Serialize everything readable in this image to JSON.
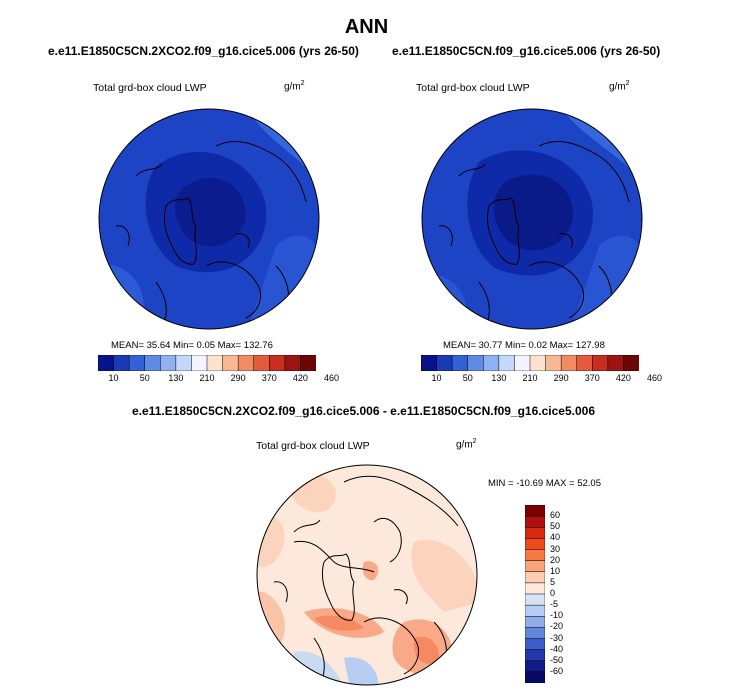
{
  "season": "ANN",
  "panels": [
    {
      "case": "e.e11.E1850C5CN.2XCO2.f09_g16.cice5.006 (yrs 26-50)",
      "field": "Total grd-box cloud LWP",
      "units_base": "g/m",
      "units_exp": "2",
      "stats": "MEAN=  35.64  Min=   0.05  Max= 132.76"
    },
    {
      "case": "e.e11.E1850C5CN.f09_g16.cice5.006 (yrs 26-50)",
      "field": "Total grd-box cloud LWP",
      "units_base": "g/m",
      "units_exp": "2",
      "stats": "MEAN=  30.77  Min=   0.02  Max= 127.98"
    }
  ],
  "colorbar": {
    "labels": [
      "10",
      "50",
      "130",
      "210",
      "290",
      "370",
      "420",
      "460"
    ],
    "colors": [
      "#08128a",
      "#1a3ab8",
      "#3361d6",
      "#5f8ae6",
      "#8fb1f2",
      "#c4d8fb",
      "#f4f4ff",
      "#fde2cf",
      "#f9b894",
      "#f28a63",
      "#e45b3c",
      "#c62f1f",
      "#9b1410",
      "#6b0606"
    ]
  },
  "diff": {
    "title": "e.e11.E1850C5CN.2XCO2.f09_g16.cice5.006 - e.e11.E1850C5CN.f09_g16.cice5.006",
    "field": "Total grd-box cloud LWP",
    "units_base": "g/m",
    "units_exp": "2",
    "minmax": "MIN = -10.69 MAX =  52.05",
    "colorbar_labels": [
      "60",
      "50",
      "40",
      "30",
      "20",
      "10",
      "5",
      "0",
      "-5",
      "-10",
      "-20",
      "-30",
      "-40",
      "-50",
      "-60"
    ],
    "colorbar_colors": [
      "#7a0000",
      "#b01010",
      "#d62a10",
      "#ee4a18",
      "#f77a44",
      "#fba47a",
      "#fdcdb0",
      "#fde9dc",
      "#d8e4f6",
      "#b7cdf1",
      "#8eaeea",
      "#6286db",
      "#3d5ec8",
      "#2338a8",
      "#101a8a",
      "#060a66"
    ]
  }
}
